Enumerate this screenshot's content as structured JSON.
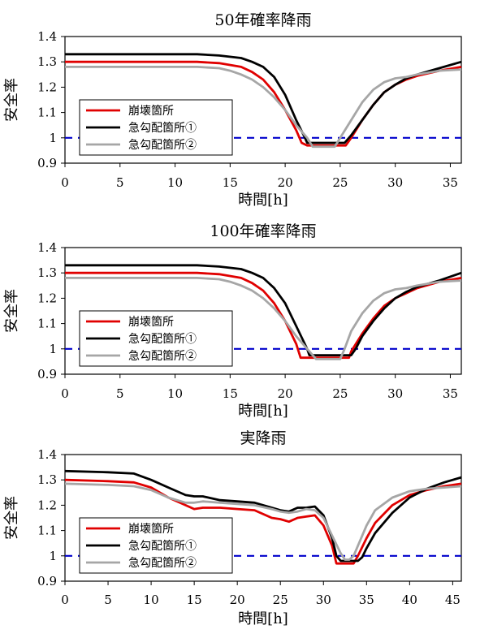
{
  "colors": {
    "collapse": "#e00000",
    "steep1": "#000000",
    "steep2": "#a6a6a6",
    "threshold": "#0000cc"
  },
  "legend_labels": [
    "崩壊箇所",
    "急勾配箇所①",
    "急勾配箇所②"
  ],
  "chart_data": [
    {
      "type": "line",
      "title": "50年確率降雨",
      "xlabel": "時間[h]",
      "ylabel": "安全率",
      "xlim": [
        0,
        36
      ],
      "ylim": [
        0.9,
        1.4
      ],
      "xticks": [
        0,
        5,
        10,
        15,
        20,
        25,
        30,
        35
      ],
      "yticks": [
        0.9,
        1,
        1.1,
        1.2,
        1.3,
        1.4
      ],
      "ytick_labels": [
        "0.9",
        "1",
        "1.1",
        "1.2",
        "1.3",
        "1.4"
      ],
      "grid": false,
      "legend_position": "lower-left",
      "threshold": 1.0,
      "series": [
        {
          "name": "崩壊箇所",
          "x": [
            0,
            8,
            12,
            14,
            16,
            17,
            18,
            19,
            20,
            21,
            21.5,
            22,
            23,
            24,
            25,
            25.5,
            26,
            27,
            28,
            29,
            30,
            31,
            32,
            34,
            36
          ],
          "y": [
            1.3,
            1.3,
            1.3,
            1.295,
            1.28,
            1.26,
            1.23,
            1.18,
            1.11,
            1.03,
            0.98,
            0.97,
            0.97,
            0.97,
            0.97,
            0.97,
            1.0,
            1.07,
            1.13,
            1.18,
            1.21,
            1.23,
            1.245,
            1.265,
            1.28
          ]
        },
        {
          "name": "急勾配箇所①",
          "x": [
            0,
            8,
            12,
            14,
            16,
            17,
            18,
            19,
            20,
            21,
            21.8,
            22,
            23,
            24,
            25,
            25.4,
            26,
            27,
            28,
            29,
            30,
            31,
            32,
            34,
            36
          ],
          "y": [
            1.33,
            1.33,
            1.33,
            1.325,
            1.315,
            1.3,
            1.28,
            1.24,
            1.17,
            1.07,
            1.0,
            0.98,
            0.98,
            0.98,
            0.98,
            0.98,
            1.01,
            1.07,
            1.13,
            1.18,
            1.21,
            1.235,
            1.25,
            1.275,
            1.3
          ]
        },
        {
          "name": "急勾配箇所②",
          "x": [
            0,
            8,
            12,
            14,
            15,
            16,
            17,
            18,
            19,
            20,
            21,
            22,
            22.5,
            23,
            24,
            24.5,
            25,
            26,
            27,
            28,
            29,
            30,
            31,
            32,
            34,
            36
          ],
          "y": [
            1.28,
            1.28,
            1.28,
            1.275,
            1.265,
            1.25,
            1.23,
            1.2,
            1.16,
            1.11,
            1.05,
            1.0,
            0.965,
            0.965,
            0.965,
            0.965,
            1.0,
            1.07,
            1.14,
            1.19,
            1.22,
            1.235,
            1.24,
            1.25,
            1.265,
            1.27
          ]
        }
      ]
    },
    {
      "type": "line",
      "title": "100年確率降雨",
      "xlabel": "時間[h]",
      "ylabel": "安全率",
      "xlim": [
        0,
        36
      ],
      "ylim": [
        0.9,
        1.4
      ],
      "xticks": [
        0,
        5,
        10,
        15,
        20,
        25,
        30,
        35
      ],
      "yticks": [
        0.9,
        1,
        1.1,
        1.2,
        1.3,
        1.4
      ],
      "ytick_labels": [
        "0.9",
        "1",
        "1.1",
        "1.2",
        "1.3",
        "1.4"
      ],
      "grid": false,
      "legend_position": "lower-left",
      "threshold": 1.0,
      "series": [
        {
          "name": "崩壊箇所",
          "x": [
            0,
            8,
            12,
            14,
            16,
            17,
            18,
            19,
            20,
            21,
            21.4,
            22,
            23,
            24,
            25,
            25.8,
            26,
            27,
            28,
            29,
            30,
            31,
            32,
            34,
            36
          ],
          "y": [
            1.3,
            1.3,
            1.3,
            1.295,
            1.28,
            1.26,
            1.23,
            1.18,
            1.11,
            1.02,
            0.965,
            0.965,
            0.965,
            0.965,
            0.965,
            0.965,
            0.99,
            1.06,
            1.12,
            1.17,
            1.2,
            1.22,
            1.24,
            1.265,
            1.28
          ]
        },
        {
          "name": "急勾配箇所①",
          "x": [
            0,
            8,
            12,
            14,
            16,
            17,
            18,
            19,
            20,
            21,
            22,
            22.2,
            23,
            24,
            25,
            26,
            26.4,
            27,
            28,
            29,
            30,
            31,
            32,
            34,
            36
          ],
          "y": [
            1.33,
            1.33,
            1.33,
            1.325,
            1.315,
            1.3,
            1.28,
            1.24,
            1.18,
            1.09,
            1.0,
            0.975,
            0.975,
            0.975,
            0.975,
            0.975,
            1.0,
            1.05,
            1.11,
            1.16,
            1.2,
            1.225,
            1.245,
            1.27,
            1.3
          ]
        },
        {
          "name": "急勾配箇所②",
          "x": [
            0,
            8,
            12,
            14,
            15,
            16,
            17,
            18,
            19,
            20,
            21,
            22,
            22.8,
            23,
            24,
            25,
            25.4,
            26,
            27,
            28,
            29,
            30,
            31,
            32,
            34,
            36
          ],
          "y": [
            1.28,
            1.28,
            1.28,
            1.275,
            1.265,
            1.25,
            1.23,
            1.2,
            1.16,
            1.11,
            1.05,
            1.0,
            0.96,
            0.96,
            0.96,
            0.96,
            1.0,
            1.07,
            1.14,
            1.19,
            1.22,
            1.235,
            1.24,
            1.25,
            1.265,
            1.27
          ]
        }
      ]
    },
    {
      "type": "line",
      "title": "実降雨",
      "xlabel": "時間[h]",
      "ylabel": "安全率",
      "xlim": [
        0,
        46
      ],
      "ylim": [
        0.9,
        1.4
      ],
      "xticks": [
        0,
        5,
        10,
        15,
        20,
        25,
        30,
        35,
        40,
        45
      ],
      "yticks": [
        0.9,
        1,
        1.1,
        1.2,
        1.3,
        1.4
      ],
      "ytick_labels": [
        "0.9",
        "1",
        "1.1",
        "1.2",
        "1.3",
        "1.4"
      ],
      "grid": false,
      "legend_position": "lower-left",
      "threshold": 1.0,
      "series": [
        {
          "name": "崩壊箇所",
          "x": [
            0,
            5,
            8,
            10,
            12,
            14,
            15,
            16,
            18,
            20,
            22,
            24,
            25,
            26,
            27,
            28,
            29,
            30,
            31,
            31.5,
            32,
            33,
            33.5,
            34,
            35,
            36,
            38,
            40,
            42,
            44,
            46
          ],
          "y": [
            1.3,
            1.295,
            1.29,
            1.27,
            1.23,
            1.2,
            1.185,
            1.19,
            1.19,
            1.185,
            1.18,
            1.15,
            1.145,
            1.135,
            1.15,
            1.155,
            1.16,
            1.12,
            1.04,
            0.97,
            0.97,
            0.97,
            0.97,
            1.0,
            1.07,
            1.13,
            1.2,
            1.24,
            1.26,
            1.275,
            1.285
          ]
        },
        {
          "name": "急勾配箇所①",
          "x": [
            0,
            5,
            8,
            10,
            12,
            14,
            15,
            16,
            18,
            20,
            22,
            24,
            25,
            26,
            27,
            28,
            29,
            30,
            31,
            31.5,
            32,
            33,
            34,
            34.5,
            35,
            36,
            38,
            40,
            42,
            44,
            46
          ],
          "y": [
            1.335,
            1.33,
            1.325,
            1.3,
            1.27,
            1.24,
            1.235,
            1.235,
            1.22,
            1.215,
            1.21,
            1.19,
            1.18,
            1.175,
            1.19,
            1.19,
            1.195,
            1.16,
            1.07,
            1.0,
            0.98,
            0.98,
            0.98,
            0.995,
            1.03,
            1.09,
            1.17,
            1.23,
            1.265,
            1.29,
            1.31
          ]
        },
        {
          "name": "急勾配箇所②",
          "x": [
            0,
            5,
            8,
            10,
            12,
            14,
            15,
            16,
            18,
            20,
            22,
            24,
            25,
            26,
            27,
            28,
            29,
            30,
            31,
            32,
            32.5,
            33,
            33.5,
            34,
            35,
            36,
            38,
            40,
            42,
            44,
            46
          ],
          "y": [
            1.285,
            1.28,
            1.275,
            1.26,
            1.23,
            1.21,
            1.21,
            1.215,
            1.21,
            1.205,
            1.2,
            1.185,
            1.175,
            1.17,
            1.175,
            1.185,
            1.18,
            1.15,
            1.08,
            1.01,
            0.985,
            0.985,
            1.0,
            1.04,
            1.12,
            1.18,
            1.23,
            1.255,
            1.265,
            1.27,
            1.275
          ]
        }
      ]
    }
  ]
}
